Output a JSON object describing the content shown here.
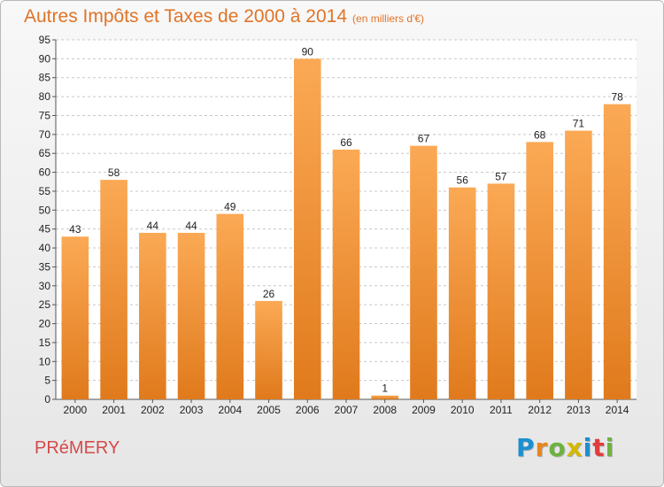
{
  "title": "Autres Impôts et Taxes de 2000 à 2014",
  "title_unit": "(en milliers d'€)",
  "commune": "PRéMERY",
  "logo": {
    "text": "Proxiti",
    "letters": [
      {
        "ch": "P",
        "color": "#1c8fd0"
      },
      {
        "ch": "r",
        "color": "#e8861d"
      },
      {
        "ch": "o",
        "color": "#6cb33f"
      },
      {
        "ch": "x",
        "color": "#d4b800"
      },
      {
        "ch": "i",
        "color": "#1c8fd0"
      },
      {
        "ch": "t",
        "color": "#e03c3c"
      },
      {
        "ch": "i",
        "color": "#6cb33f"
      }
    ]
  },
  "colors": {
    "bar_top": "#fba955",
    "bar_bottom": "#e07a1c",
    "title": "#e07428",
    "commune": "#d54a4a"
  },
  "chart_data": {
    "type": "bar",
    "categories": [
      "2000",
      "2001",
      "2002",
      "2003",
      "2004",
      "2005",
      "2006",
      "2007",
      "2008",
      "2009",
      "2010",
      "2011",
      "2012",
      "2013",
      "2014"
    ],
    "values": [
      43,
      58,
      44,
      44,
      49,
      26,
      90,
      66,
      1,
      67,
      56,
      57,
      68,
      71,
      78
    ],
    "ylim": [
      0,
      95
    ],
    "ytick_step": 5,
    "grid": true,
    "data_labels": true
  }
}
